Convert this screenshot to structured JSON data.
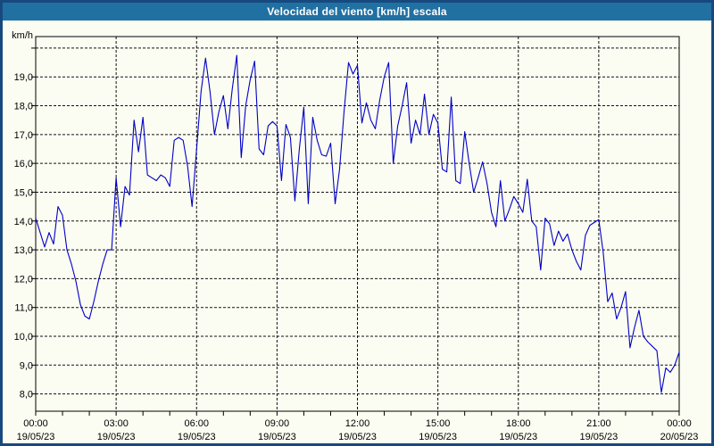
{
  "window": {
    "title": "Velocidad del viento [km/h] escala"
  },
  "colors": {
    "titlebar_bg": "#2170a2",
    "titlebar_text": "#ffffff",
    "frame_border": "#17497e",
    "page_bg": "#fcfdf2",
    "line": "#0000c8",
    "grid": "#111111",
    "axis": "#000000",
    "label_text": "#000000"
  },
  "chart_data": {
    "type": "line",
    "title": "Velocidad del viento [km/h] escala",
    "ylabel": "km/h",
    "xlabel": "",
    "grid": "dashed",
    "legend": "none",
    "ylim": [
      7.4,
      20.4
    ],
    "y_axis": {
      "min": 8,
      "max": 20,
      "step": 1,
      "labels_top_to_bottom": [
        "19,0",
        "18,0",
        "17,0",
        "16,0",
        "15,0",
        "14,0",
        "13,0",
        "12,0",
        "11,0",
        "10,0",
        "9,0",
        "8,0"
      ],
      "unlabeled_gridline": 20
    },
    "x_axis": {
      "start_minutes": 0,
      "end_minutes": 1440,
      "minor_tick_minutes": 60,
      "major_tick_minutes": 180,
      "labels": [
        {
          "time": "00:00",
          "date": "19/05/23"
        },
        {
          "time": "03:00",
          "date": "19/05/23"
        },
        {
          "time": "06:00",
          "date": "19/05/23"
        },
        {
          "time": "09:00",
          "date": "19/05/23"
        },
        {
          "time": "12:00",
          "date": "19/05/23"
        },
        {
          "time": "15:00",
          "date": "19/05/23"
        },
        {
          "time": "18:00",
          "date": "19/05/23"
        },
        {
          "time": "21:00",
          "date": "19/05/23"
        },
        {
          "time": "00:00",
          "date": "20/05/23"
        }
      ]
    },
    "series": [
      {
        "name": "Velocidad del viento",
        "unit": "km/h",
        "sample_step_minutes": 10,
        "values": [
          14.1,
          13.6,
          13.1,
          13.6,
          13.2,
          14.5,
          14.2,
          13.0,
          12.5,
          11.9,
          11.1,
          10.7,
          10.6,
          11.2,
          11.9,
          12.5,
          13.0,
          13.0,
          15.5,
          13.8,
          15.2,
          14.9,
          17.5,
          16.4,
          17.6,
          15.6,
          15.5,
          15.4,
          15.6,
          15.5,
          15.2,
          16.8,
          16.9,
          16.8,
          15.9,
          14.5,
          16.5,
          18.5,
          19.65,
          18.5,
          17.0,
          17.8,
          18.35,
          17.2,
          18.6,
          19.75,
          16.2,
          18.0,
          18.9,
          19.55,
          16.5,
          16.3,
          17.3,
          17.45,
          17.3,
          15.4,
          17.35,
          16.9,
          14.7,
          16.5,
          17.95,
          14.6,
          17.6,
          16.8,
          16.3,
          16.25,
          16.7,
          14.6,
          15.8,
          17.8,
          19.5,
          19.1,
          19.4,
          17.4,
          18.1,
          17.5,
          17.2,
          18.2,
          19.0,
          19.5,
          16.0,
          17.3,
          18.0,
          18.8,
          16.7,
          17.5,
          17.0,
          18.4,
          17.0,
          17.7,
          17.4,
          15.8,
          15.7,
          18.3,
          15.4,
          15.3,
          17.1,
          16.0,
          15.0,
          15.5,
          16.05,
          15.3,
          14.3,
          13.8,
          15.4,
          14.0,
          14.4,
          14.85,
          14.6,
          14.3,
          15.45,
          14.0,
          13.8,
          12.3,
          14.1,
          13.9,
          13.15,
          13.65,
          13.3,
          13.55,
          13.0,
          12.6,
          12.3,
          13.5,
          13.85,
          13.95,
          14.05,
          12.9,
          11.2,
          11.5,
          10.6,
          11.0,
          11.55,
          9.6,
          10.3,
          10.9,
          10.0,
          9.8,
          9.65,
          9.5,
          8.05,
          8.9,
          8.75,
          9.0,
          9.45
        ]
      }
    ]
  }
}
